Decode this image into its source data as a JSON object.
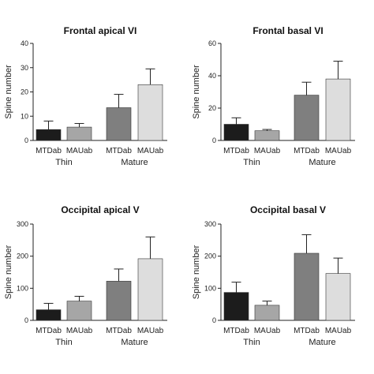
{
  "chart_data": [
    {
      "type": "bar",
      "title": "Frontal apical VI",
      "ylabel": "Spine number",
      "ylim": [
        0,
        40
      ],
      "yticks": [
        "0",
        "10",
        "20",
        "30",
        "40"
      ],
      "categories": [
        "MTDab",
        "MAUab",
        "MTDab",
        "MAUab"
      ],
      "groups": [
        "Thin",
        "Mature"
      ],
      "values": [
        4.5,
        5.5,
        13.5,
        23
      ],
      "errors": [
        3.5,
        1.5,
        5.5,
        6.5
      ],
      "colors": [
        "#1c1c1c",
        "#a6a6a6",
        "#7f7f7f",
        "#dddddd"
      ]
    },
    {
      "type": "bar",
      "title": "Frontal basal VI",
      "ylabel": "Spine number",
      "ylim": [
        0,
        60
      ],
      "yticks": [
        "0",
        "20",
        "40",
        "60"
      ],
      "categories": [
        "MTDab",
        "MAUab",
        "MTDab",
        "MAUab"
      ],
      "groups": [
        "Thin",
        "Mature"
      ],
      "values": [
        10,
        6,
        28,
        38
      ],
      "errors": [
        4,
        0.8,
        8,
        11
      ],
      "colors": [
        "#1c1c1c",
        "#a6a6a6",
        "#7f7f7f",
        "#dddddd"
      ]
    },
    {
      "type": "bar",
      "title": "Occipital apical V",
      "ylabel": "Spine number",
      "ylim": [
        0,
        300
      ],
      "yticks": [
        "0",
        "100",
        "200",
        "300"
      ],
      "categories": [
        "MTDab",
        "MAUab",
        "MTDab",
        "MAUab"
      ],
      "groups": [
        "Thin",
        "Mature"
      ],
      "values": [
        33,
        60,
        122,
        192
      ],
      "errors": [
        20,
        15,
        38,
        68
      ],
      "colors": [
        "#1c1c1c",
        "#a6a6a6",
        "#7f7f7f",
        "#dddddd"
      ]
    },
    {
      "type": "bar",
      "title": "Occipital basal V",
      "ylabel": "Spine number",
      "ylim": [
        0,
        300
      ],
      "yticks": [
        "0",
        "100",
        "200",
        "300"
      ],
      "categories": [
        "MTDab",
        "MAUab",
        "MTDab",
        "MAUab"
      ],
      "groups": [
        "Thin",
        "Mature"
      ],
      "values": [
        87,
        47,
        209,
        146
      ],
      "errors": [
        32,
        13,
        58,
        48
      ],
      "colors": [
        "#1c1c1c",
        "#a6a6a6",
        "#7f7f7f",
        "#dddddd"
      ]
    }
  ]
}
